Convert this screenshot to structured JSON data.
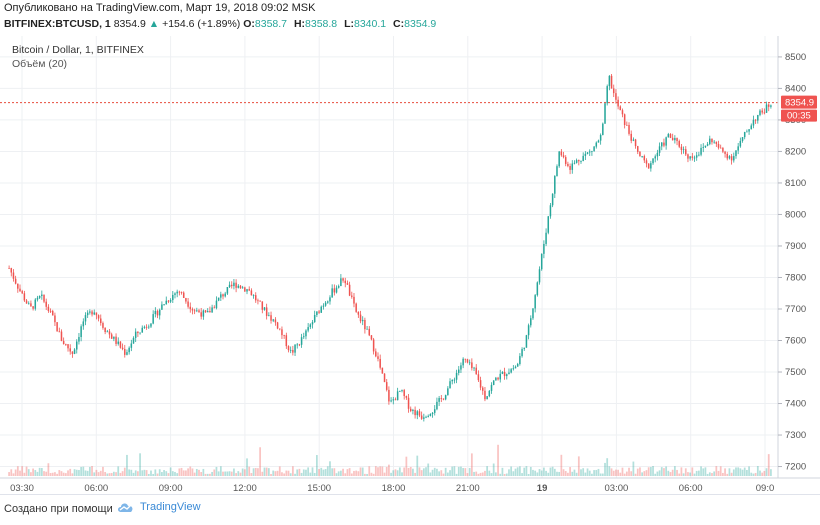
{
  "header": {
    "published": "Опубликовано на TradingView.com, Март 19, 2018 09:02 MSK",
    "symbol": "BITFINEX:BTCUSD, 1",
    "last": "8354.9",
    "change_arrow": "▲",
    "change": "+154.6 (+1.89%)",
    "o_label": "O:",
    "o_value": "8358.7",
    "h_label": "H:",
    "h_value": "8358.8",
    "l_label": "L:",
    "l_value": "8340.1",
    "c_label": "C:",
    "c_value": "8354.9"
  },
  "legend": {
    "title": "Bitcoin / Dollar, 1, BITFINEX",
    "volume": "Объём (20)"
  },
  "footer": {
    "created": "Создано при помощи",
    "brand": "TradingView",
    "brand_icon": "tradingview-cloud-icon"
  },
  "colors": {
    "up": "#26a69a",
    "down": "#ef5350",
    "price_line": "#e74c3c",
    "grid": "#eef0f3",
    "brand": "#3a8ad6"
  },
  "chart_data": {
    "type": "candlestick",
    "title": "Bitcoin / Dollar, 1, BITFINEX",
    "ylim": [
      7170,
      8560
    ],
    "yticks": [
      8500,
      8400,
      8300,
      8200,
      8100,
      8000,
      7900,
      7800,
      7700,
      7600,
      7500,
      7400,
      7300,
      7200
    ],
    "xticks": [
      "03:30",
      "06:00",
      "09:00",
      "12:00",
      "15:00",
      "18:00",
      "21:00",
      "19",
      "03:00",
      "06:00",
      "09:0"
    ],
    "last_price": "8354.9",
    "countdown": "00:35",
    "grid": true,
    "approx_path": [
      [
        0,
        7830
      ],
      [
        3,
        7760
      ],
      [
        6,
        7700
      ],
      [
        9,
        7740
      ],
      [
        12,
        7680
      ],
      [
        15,
        7600
      ],
      [
        18,
        7560
      ],
      [
        21,
        7660
      ],
      [
        24,
        7700
      ],
      [
        27,
        7640
      ],
      [
        30,
        7600
      ],
      [
        33,
        7560
      ],
      [
        36,
        7620
      ],
      [
        40,
        7660
      ],
      [
        44,
        7720
      ],
      [
        48,
        7760
      ],
      [
        52,
        7700
      ],
      [
        56,
        7680
      ],
      [
        60,
        7740
      ],
      [
        64,
        7780
      ],
      [
        68,
        7760
      ],
      [
        72,
        7700
      ],
      [
        76,
        7650
      ],
      [
        80,
        7560
      ],
      [
        84,
        7620
      ],
      [
        88,
        7700
      ],
      [
        92,
        7760
      ],
      [
        95,
        7800
      ],
      [
        98,
        7700
      ],
      [
        101,
        7640
      ],
      [
        104,
        7560
      ],
      [
        106,
        7480
      ],
      [
        108,
        7400
      ],
      [
        111,
        7440
      ],
      [
        114,
        7380
      ],
      [
        117,
        7360
      ],
      [
        120,
        7380
      ],
      [
        123,
        7420
      ],
      [
        126,
        7480
      ],
      [
        129,
        7540
      ],
      [
        132,
        7500
      ],
      [
        135,
        7420
      ],
      [
        138,
        7480
      ],
      [
        141,
        7500
      ],
      [
        144,
        7520
      ],
      [
        147,
        7620
      ],
      [
        150,
        7800
      ],
      [
        153,
        8000
      ],
      [
        156,
        8200
      ],
      [
        159,
        8150
      ],
      [
        162,
        8180
      ],
      [
        165,
        8200
      ],
      [
        168,
        8250
      ],
      [
        170,
        8440
      ],
      [
        172,
        8360
      ],
      [
        175,
        8280
      ],
      [
        178,
        8200
      ],
      [
        181,
        8150
      ],
      [
        184,
        8200
      ],
      [
        187,
        8250
      ],
      [
        190,
        8220
      ],
      [
        193,
        8180
      ],
      [
        196,
        8200
      ],
      [
        199,
        8240
      ],
      [
        202,
        8200
      ],
      [
        205,
        8180
      ],
      [
        208,
        8240
      ],
      [
        211,
        8300
      ],
      [
        214,
        8330
      ],
      [
        216,
        8355
      ]
    ]
  }
}
